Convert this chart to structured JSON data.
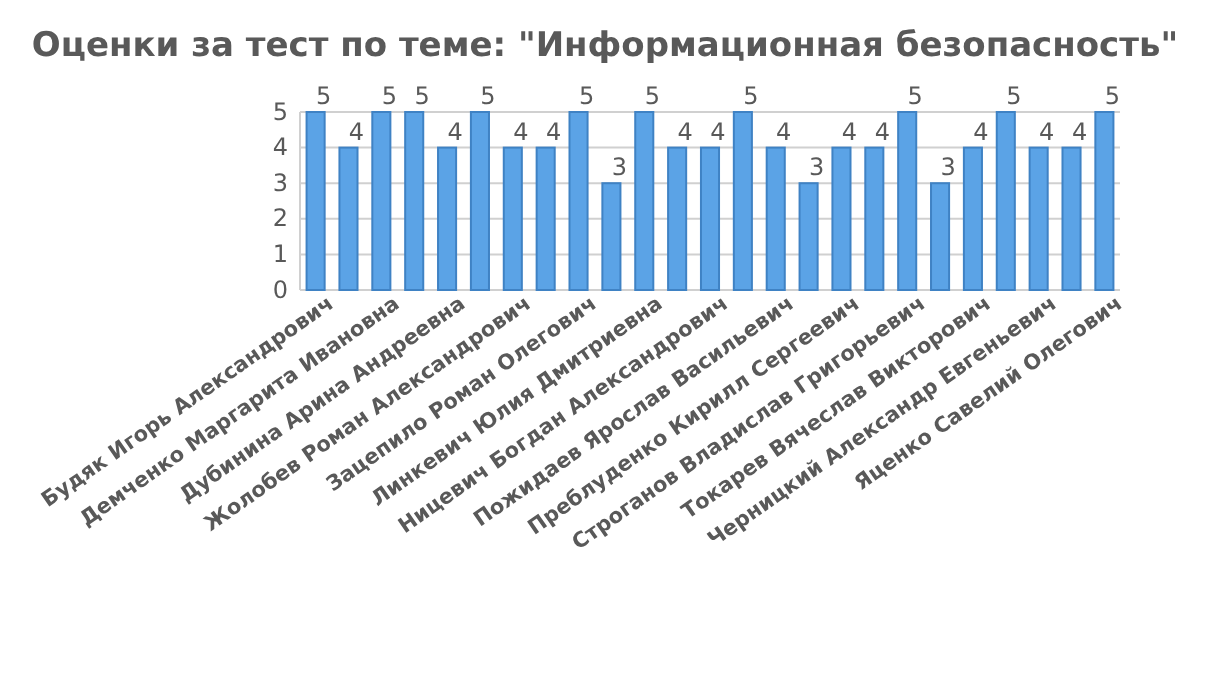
{
  "chart_data": {
    "type": "bar",
    "title": "Оценки за тест по теме: \"Информационная безопасность\"",
    "categories": [
      "Будяк Игорь Александрович",
      null,
      "Демченко Маргарита  Ивановна",
      null,
      "Дубинина Арина Андреевна",
      null,
      "Жолобев Роман Александрович",
      null,
      "Зацепило Роман Олегович",
      null,
      "Линкевич Юлия Дмитриевна",
      null,
      "Ницевич Богдан Александрович",
      null,
      "Пожидаев Ярослав Васильевич",
      null,
      "Преблуденко Кирилл Сергеевич",
      null,
      "Строганов Владислав Григорьевич",
      null,
      "Токарев Вячеслав Викторович",
      null,
      "Черницкий Александр Евгеньевич",
      null,
      "Яценко Савелий Олегович"
    ],
    "values": [
      5,
      4,
      5,
      5,
      4,
      5,
      4,
      4,
      5,
      3,
      5,
      4,
      4,
      5,
      4,
      3,
      4,
      4,
      5,
      3,
      4,
      5,
      4,
      4,
      5
    ],
    "color": "#5ba3e6",
    "ylim": [
      0,
      5
    ],
    "yticks": [
      0,
      1,
      2,
      3,
      4,
      5
    ],
    "grid": true,
    "data_labels": true
  }
}
